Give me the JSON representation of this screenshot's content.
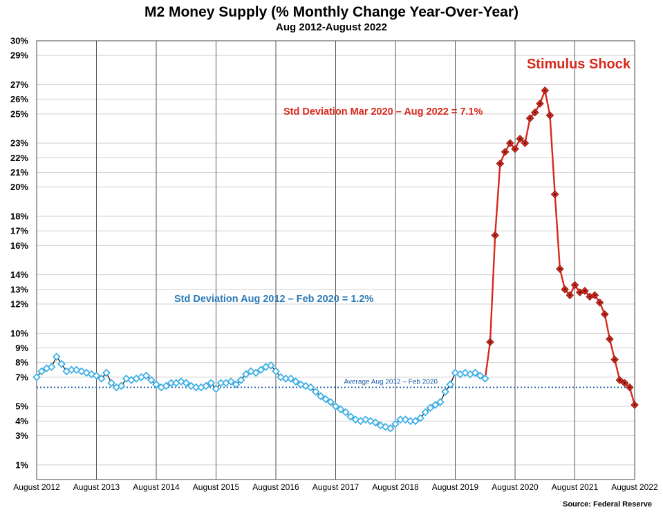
{
  "title": "M2 Money Supply (% Monthly Change Year-Over-Year)",
  "subtitle": "Aug 2012-August 2022",
  "source": "Source: Federal Reserve",
  "colors": {
    "pre": "#3fb0e5",
    "pre_line": "#000000",
    "stimulus": "#d8281c",
    "average": "#1a5fa8",
    "std_pre_text": "#2a7ab8",
    "grid_h": "#d0d0d0",
    "grid_v": "#555555"
  },
  "chart_data": {
    "type": "line",
    "xlabel": "",
    "ylabel": "",
    "ylim": [
      0,
      30
    ],
    "y_ticks": [
      "1%",
      "3%",
      "4%",
      "5%",
      "7%",
      "8%",
      "9%",
      "10%",
      "12%",
      "13%",
      "14%",
      "16%",
      "17%",
      "18%",
      "20%",
      "21%",
      "22%",
      "23%",
      "25%",
      "26%",
      "27%",
      "29%",
      "30%"
    ],
    "x_ticks": [
      "August 2012",
      "August 2013",
      "August 2014",
      "August 2015",
      "August 2016",
      "August 2017",
      "August 2018",
      "August 2019",
      "August 2020",
      "August 2021",
      "August 2022"
    ],
    "x_range": [
      "2012-08",
      "2022-08"
    ],
    "grid": true,
    "series": [
      {
        "style": "hollow-diamond",
        "x": [
          "2012-08",
          "2012-09",
          "2012-10",
          "2012-11",
          "2012-12",
          "2013-01",
          "2013-02",
          "2013-03",
          "2013-04",
          "2013-05",
          "2013-06",
          "2013-07",
          "2013-08",
          "2013-09",
          "2013-10",
          "2013-11",
          "2013-12",
          "2014-01",
          "2014-02",
          "2014-03",
          "2014-04",
          "2014-05",
          "2014-06",
          "2014-07",
          "2014-08",
          "2014-09",
          "2014-10",
          "2014-11",
          "2014-12",
          "2015-01",
          "2015-02",
          "2015-03",
          "2015-04",
          "2015-05",
          "2015-06",
          "2015-07",
          "2015-08",
          "2015-09",
          "2015-10",
          "2015-11",
          "2015-12",
          "2016-01",
          "2016-02",
          "2016-03",
          "2016-04",
          "2016-05",
          "2016-06",
          "2016-07",
          "2016-08",
          "2016-09",
          "2016-10",
          "2016-11",
          "2016-12",
          "2017-01",
          "2017-02",
          "2017-03",
          "2017-04",
          "2017-05",
          "2017-06",
          "2017-07",
          "2017-08",
          "2017-09",
          "2017-10",
          "2017-11",
          "2017-12",
          "2018-01",
          "2018-02",
          "2018-03",
          "2018-04",
          "2018-05",
          "2018-06",
          "2018-07",
          "2018-08",
          "2018-09",
          "2018-10",
          "2018-11",
          "2018-12",
          "2019-01",
          "2019-02",
          "2019-03",
          "2019-04",
          "2019-05",
          "2019-06",
          "2019-07",
          "2019-08",
          "2019-09",
          "2019-10",
          "2019-11",
          "2019-12",
          "2020-01",
          "2020-02"
        ],
        "values": [
          7.0,
          7.4,
          7.6,
          7.7,
          8.4,
          7.9,
          7.4,
          7.5,
          7.5,
          7.4,
          7.3,
          7.2,
          7.1,
          6.9,
          7.3,
          6.6,
          6.3,
          6.4,
          6.9,
          6.8,
          6.9,
          7.0,
          7.1,
          6.8,
          6.5,
          6.3,
          6.4,
          6.6,
          6.6,
          6.7,
          6.6,
          6.4,
          6.3,
          6.3,
          6.4,
          6.6,
          6.2,
          6.6,
          6.6,
          6.7,
          6.5,
          6.8,
          7.2,
          7.4,
          7.3,
          7.5,
          7.7,
          7.8,
          7.4,
          7.0,
          6.9,
          6.9,
          6.7,
          6.5,
          6.4,
          6.3,
          6.0,
          5.7,
          5.5,
          5.3,
          5.0,
          4.8,
          4.6,
          4.3,
          4.1,
          4.0,
          4.1,
          4.0,
          3.9,
          3.7,
          3.6,
          3.5,
          3.8,
          4.1,
          4.1,
          4.0,
          4.0,
          4.2,
          4.6,
          4.9,
          5.1,
          5.3,
          6.0,
          6.5,
          7.3,
          7.2,
          7.3,
          7.2,
          7.3,
          7.1,
          6.9
        ]
      },
      {
        "name": "Stimulus Shock",
        "style": "filled-diamond",
        "x": [
          "2020-03",
          "2020-04",
          "2020-05",
          "2020-06",
          "2020-07",
          "2020-08",
          "2020-09",
          "2020-10",
          "2020-11",
          "2020-12",
          "2021-01",
          "2021-02",
          "2021-03",
          "2021-04",
          "2021-05",
          "2021-06",
          "2021-07",
          "2021-08",
          "2021-09",
          "2021-10",
          "2021-11",
          "2021-12",
          "2022-01",
          "2022-02",
          "2022-03",
          "2022-04",
          "2022-05",
          "2022-06",
          "2022-07",
          "2022-08"
        ],
        "values": [
          9.4,
          16.7,
          21.6,
          22.4,
          23.0,
          22.6,
          23.3,
          23.0,
          24.7,
          25.1,
          25.7,
          26.6,
          24.9,
          19.5,
          14.4,
          13.0,
          12.6,
          13.3,
          12.8,
          12.9,
          12.5,
          12.6,
          12.1,
          11.3,
          9.6,
          8.2,
          6.8,
          6.6,
          6.3,
          5.1
        ]
      }
    ],
    "average_line": {
      "value": 6.3,
      "label": "Average Aug 2012 – Feb 2020"
    },
    "annotations": {
      "stimulus": "Stimulus Shock",
      "std_post": "Std Deviation Mar 2020 – Aug 2022 = 7.1%",
      "std_pre": "Std Deviation Aug 2012 – Feb 2020 = 1.2%"
    }
  }
}
